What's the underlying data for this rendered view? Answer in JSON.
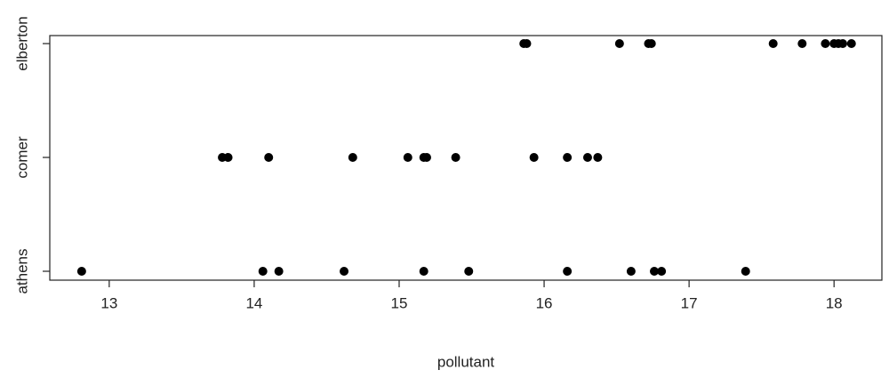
{
  "chart_data": {
    "type": "strip",
    "xlabel": "pollutant",
    "categories": [
      "athens",
      "comer",
      "elberton"
    ],
    "values": [
      [
        12.81,
        14.06,
        14.17,
        14.62,
        15.17,
        15.48,
        16.16,
        16.6,
        16.76,
        16.81,
        17.39
      ],
      [
        13.78,
        13.82,
        14.1,
        14.68,
        15.06,
        15.17,
        15.19,
        15.39,
        15.93,
        16.16,
        16.3,
        16.37
      ],
      [
        15.86,
        15.88,
        16.52,
        16.72,
        16.74,
        17.58,
        17.78,
        17.94,
        18.0,
        18.03,
        18.06,
        18.12
      ]
    ],
    "color": "#000000",
    "xlim": [
      12.59,
      18.33
    ],
    "xticks": [
      13,
      14,
      15,
      16,
      17,
      18
    ]
  }
}
